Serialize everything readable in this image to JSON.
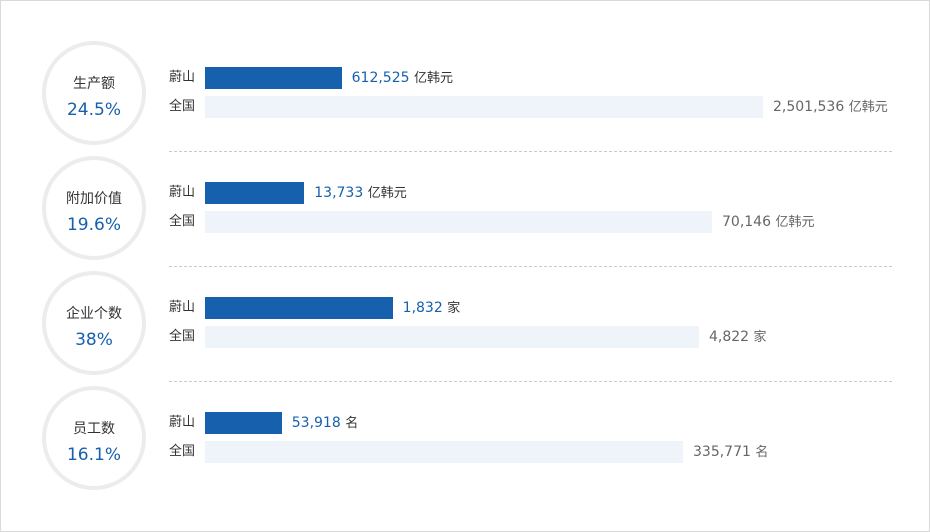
{
  "chart_data": {
    "type": "bar",
    "series_labels": {
      "local": "蔚山",
      "national": "全国"
    },
    "rows": [
      {
        "label": "生产额",
        "share": "24.5%",
        "local_value": 612525,
        "local_display": "612,525",
        "national_value": 2501536,
        "national_display": "2,501,536",
        "unit": "亿韩元"
      },
      {
        "label": "附加价值",
        "share": "19.6%",
        "local_value": 13733,
        "local_display": "13,733",
        "national_value": 70146,
        "national_display": "70,146",
        "unit": "亿韩元"
      },
      {
        "label": "企业个数",
        "share": "38%",
        "local_value": 1832,
        "local_display": "1,832",
        "national_value": 4822,
        "national_display": "4,822",
        "unit": "家"
      },
      {
        "label": "员工数",
        "share": "16.1%",
        "local_value": 53918,
        "local_display": "53,918",
        "national_value": 335771,
        "national_display": "335,771",
        "unit": "名"
      }
    ]
  },
  "colors": {
    "local_bar": "#1660ad",
    "national_bar": "#eef4fa",
    "accent_text": "#1660ad",
    "circle_border": "#ececec"
  }
}
